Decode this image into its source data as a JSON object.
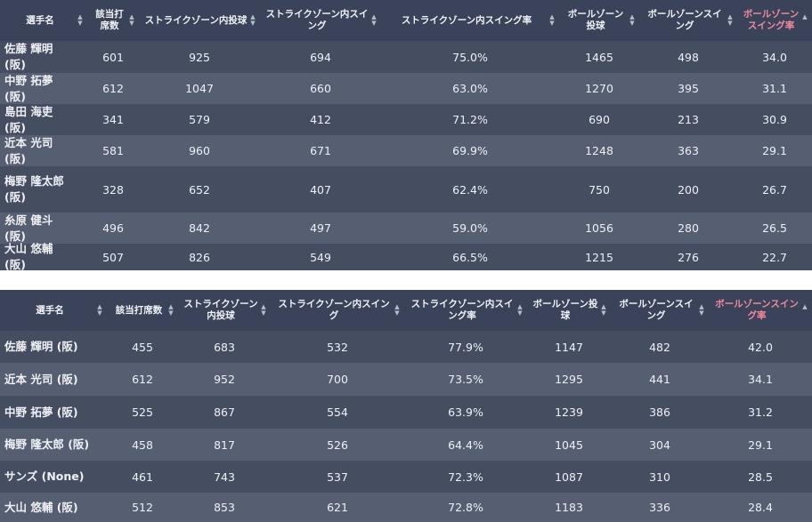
{
  "headers": [
    "選手名",
    "該当打席数",
    "ストライクゾーン内投球",
    "ストライクゾーン内スイング",
    "ストライクゾーン内スイング率",
    "ボールゾーン投球",
    "ボールゾーンスイング",
    "ボールゾーンスイング率"
  ],
  "highlight_color": "#f28a9e",
  "tables": [
    {
      "rows": [
        [
          "佐藤 輝明 (阪)",
          "601",
          "925",
          "694",
          "75.0%",
          "1465",
          "498",
          "34.0"
        ],
        [
          "中野 拓夢 (阪)",
          "612",
          "1047",
          "660",
          "63.0%",
          "1270",
          "395",
          "31.1"
        ],
        [
          "島田 海吏 (阪)",
          "341",
          "579",
          "412",
          "71.2%",
          "690",
          "213",
          "30.9"
        ],
        [
          "近本 光司 (阪)",
          "581",
          "960",
          "671",
          "69.9%",
          "1248",
          "363",
          "29.1"
        ],
        [
          "梅野 隆太郎 (阪)",
          "328",
          "652",
          "407",
          "62.4%",
          "750",
          "200",
          "26.7"
        ],
        [
          "糸原 健斗 (阪)",
          "496",
          "842",
          "497",
          "59.0%",
          "1056",
          "280",
          "26.5"
        ],
        [
          "大山 悠輔 (阪)",
          "507",
          "826",
          "549",
          "66.5%",
          "1215",
          "276",
          "22.7"
        ]
      ]
    },
    {
      "rows": [
        [
          "佐藤 輝明 (阪)",
          "455",
          "683",
          "532",
          "77.9%",
          "1147",
          "482",
          "42.0"
        ],
        [
          "近本 光司 (阪)",
          "612",
          "952",
          "700",
          "73.5%",
          "1295",
          "441",
          "34.1"
        ],
        [
          "中野 拓夢 (阪)",
          "525",
          "867",
          "554",
          "63.9%",
          "1239",
          "386",
          "31.2"
        ],
        [
          "梅野 隆太郎 (阪)",
          "458",
          "817",
          "526",
          "64.4%",
          "1045",
          "304",
          "29.1"
        ],
        [
          "サンズ (None)",
          "461",
          "743",
          "537",
          "72.3%",
          "1087",
          "310",
          "28.5"
        ],
        [
          "大山 悠輔 (阪)",
          "512",
          "853",
          "621",
          "72.8%",
          "1183",
          "336",
          "28.4"
        ]
      ]
    }
  ]
}
